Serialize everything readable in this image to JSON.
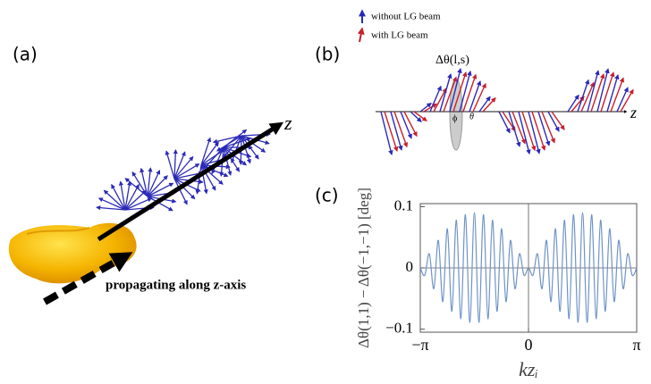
{
  "panels": {
    "a": {
      "label": "(a)",
      "axis_label": "z",
      "caption": "propagating along z-axis"
    },
    "b": {
      "label": "(b)",
      "legend": [
        "without LG beam",
        "with LG beam"
      ],
      "annotation": "Δθ(l,s)",
      "phi": "ϕ",
      "theta": "θ",
      "axis_label": "z"
    },
    "c": {
      "label": "(c)"
    }
  },
  "chart_data": {
    "type": "line",
    "x_label": "kzᵢ",
    "y_label": "Δθ(1,1) − Δθ(−1,−1) [deg]",
    "x": [
      -3.142,
      -3.011,
      -2.88,
      -2.749,
      -2.618,
      -2.487,
      -2.356,
      -2.225,
      -2.094,
      -1.963,
      -1.833,
      -1.702,
      -1.571,
      -1.44,
      -1.309,
      -1.178,
      -1.047,
      -0.916,
      -0.785,
      -0.654,
      -0.524,
      -0.393,
      -0.262,
      -0.131,
      0,
      0.131,
      0.262,
      0.393,
      0.524,
      0.654,
      0.785,
      0.916,
      1.047,
      1.178,
      1.309,
      1.44,
      1.571,
      1.702,
      1.833,
      1.963,
      2.094,
      2.225,
      2.356,
      2.487,
      2.618,
      2.749,
      2.88,
      3.011,
      3.142
    ],
    "values": [
      0,
      -0.012,
      0.023,
      -0.034,
      0.045,
      -0.055,
      0.064,
      -0.071,
      0.078,
      -0.083,
      0.087,
      -0.089,
      0.09,
      -0.089,
      0.087,
      -0.083,
      0.078,
      -0.071,
      0.064,
      -0.055,
      0.045,
      -0.034,
      0.023,
      -0.012,
      0,
      -0.012,
      0.023,
      -0.034,
      0.045,
      -0.055,
      0.064,
      -0.071,
      0.078,
      -0.083,
      0.087,
      -0.089,
      0.09,
      -0.089,
      0.087,
      -0.083,
      0.078,
      -0.071,
      0.064,
      -0.055,
      0.045,
      -0.034,
      0.023,
      -0.012,
      0
    ],
    "color": "#6f93c7",
    "xlim": [
      -3.142,
      3.142
    ],
    "xticks": [
      {
        "value": -3.142,
        "label": "−π"
      },
      0,
      {
        "value": 3.142,
        "label": "π"
      }
    ],
    "ylim": [
      -0.105,
      0.105
    ],
    "yticks": [
      {
        "value": -0.1,
        "label": "−0.1"
      },
      0,
      0.1
    ]
  }
}
